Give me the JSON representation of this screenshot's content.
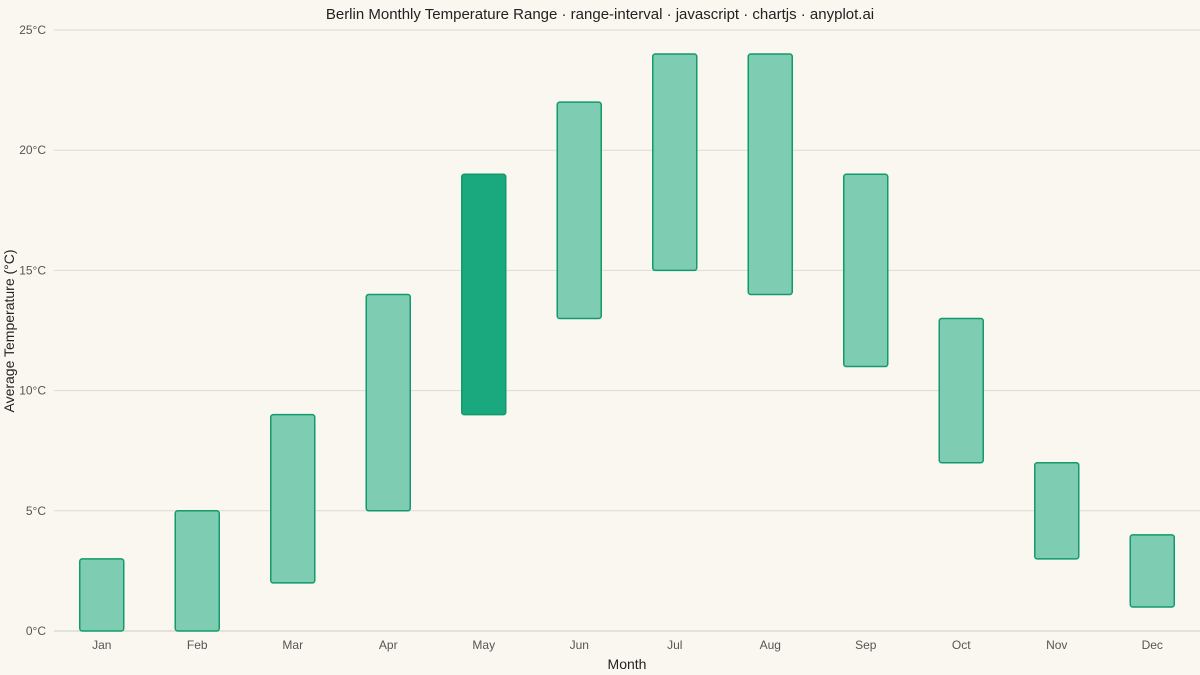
{
  "chart_data": {
    "type": "bar",
    "subtype": "range-interval",
    "title": "Berlin Monthly Temperature Range · range-interval · javascript · chartjs · anyplot.ai",
    "xlabel": "Month",
    "ylabel": "Average Temperature (°C)",
    "ylim": [
      0,
      25
    ],
    "ytick_values": [
      0,
      5,
      10,
      15,
      20,
      25
    ],
    "ytick_labels": [
      "0°C",
      "5°C",
      "10°C",
      "15°C",
      "20°C",
      "25°C"
    ],
    "grid": true,
    "legend": "none",
    "categories": [
      "Jan",
      "Feb",
      "Mar",
      "Apr",
      "May",
      "Jun",
      "Jul",
      "Aug",
      "Sep",
      "Oct",
      "Nov",
      "Dec"
    ],
    "series": [
      {
        "low": [
          0,
          0,
          2,
          5,
          9,
          13,
          15,
          14,
          11,
          7,
          3,
          1
        ],
        "high": [
          3,
          5,
          9,
          14,
          19,
          22,
          24,
          24,
          19,
          13,
          7,
          4
        ]
      }
    ],
    "highlight_index": 4,
    "colors": {
      "bar_fill": "#7ECCB2",
      "bar_highlight_fill": "#1AA97E",
      "bar_stroke": "#129A6C"
    }
  }
}
